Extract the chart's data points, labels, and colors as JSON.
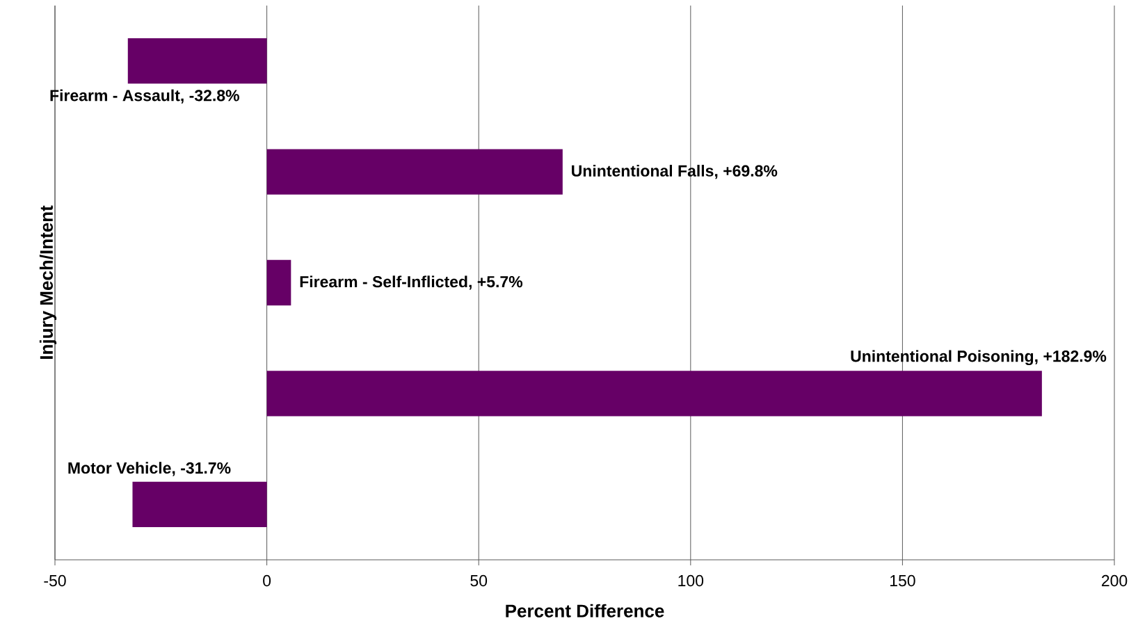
{
  "chart_data": {
    "type": "bar",
    "orientation": "horizontal",
    "xlabel": "Percent Difference",
    "ylabel": "Injury Mech/Intent",
    "categories": [
      null,
      null,
      null,
      null,
      null
    ],
    "values": [
      -32.8,
      69.8,
      5.7,
      182.9,
      -31.7
    ],
    "value_labels": [
      "Firearm - Assault, -32.8%",
      "Unintentional Falls, +69.8%",
      "Firearm - Self-Inflicted, +5.7%",
      "Unintentional Poisoning, +182.9%",
      "Motor Vehicle, -31.7%"
    ],
    "color": "#660066",
    "xlim": [
      -50,
      200
    ],
    "xticks": [
      -50,
      0,
      50,
      100,
      150,
      200
    ],
    "grid": "x",
    "tick_labels": "x"
  }
}
